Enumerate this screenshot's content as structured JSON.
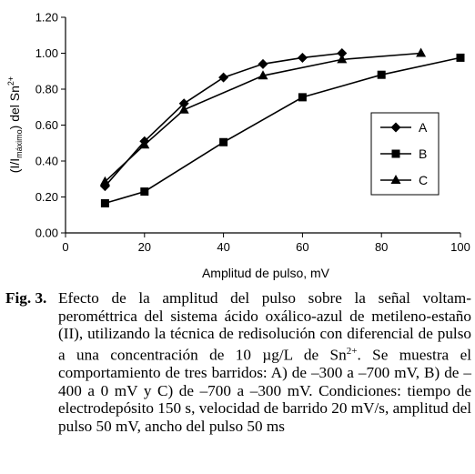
{
  "chart_data": {
    "type": "line",
    "title": "",
    "xlabel": "Amplitud de pulso, mV",
    "ylabel": {
      "prefix": "(I/I",
      "sub": "máximo",
      "mid": ") del Sn",
      "sup": "2+"
    },
    "xlim": [
      0,
      100
    ],
    "ylim": [
      0,
      1.2
    ],
    "xticks": [
      "0",
      "20",
      "40",
      "60",
      "80",
      "100"
    ],
    "yticks": [
      "0.00",
      "0.20",
      "0.40",
      "0.60",
      "0.80",
      "1.00",
      "1.20"
    ],
    "grid": false,
    "legend_position": "right",
    "series": [
      {
        "name": "A",
        "marker": "diamond",
        "x": [
          10,
          20,
          30,
          40,
          50,
          60,
          70
        ],
        "y": [
          0.26,
          0.51,
          0.72,
          0.865,
          0.94,
          0.975,
          1.0
        ]
      },
      {
        "name": "B",
        "marker": "square",
        "x": [
          10,
          20,
          40,
          60,
          80,
          100
        ],
        "y": [
          0.165,
          0.23,
          0.505,
          0.755,
          0.88,
          0.975
        ]
      },
      {
        "name": "C",
        "marker": "triangle",
        "x": [
          10,
          20,
          30,
          50,
          70,
          90
        ],
        "y": [
          0.285,
          0.49,
          0.685,
          0.875,
          0.965,
          1.0
        ]
      }
    ]
  },
  "caption": {
    "label": "Fig. 3.",
    "parts": [
      "Efecto de la amplitud del pulso sobre la señal voltam-perométtrica del sistema ácido oxálico-azul de metileno-estaño (II), utilizando la técnica de redisolución con diferencial de pulso a una concentración de 10 µg/L de Sn",
      "2+",
      ". Se muestra el comportamiento de tres barridos: A) de –300 a –700 mV, B) de –400 a 0 mV y C) de –700 a –300 mV. Condiciones: tiempo de electrodepósito 150 s, velocidad de barrido 20 mV/s, amplitud del pulso 50 mV, ancho del pulso 50 ms"
    ]
  }
}
